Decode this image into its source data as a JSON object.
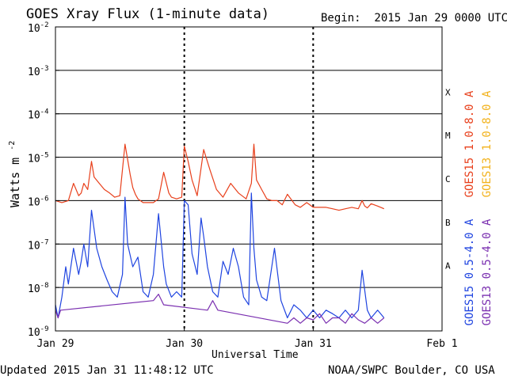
{
  "header": {
    "title": "GOES Xray Flux (1-minute data)",
    "begin": "Begin:  2015 Jan 29 0000 UTC"
  },
  "footer": {
    "updated": "Updated 2015 Jan 31 11:48:12 UTC",
    "credit": "NOAA/SWPC Boulder, CO USA"
  },
  "colors": {
    "goes15_long": "#e8401c",
    "goes13_long": "#f2b21c",
    "goes15_short": "#1f44e0",
    "goes13_short": "#7a2fb0"
  },
  "chart_data": {
    "type": "line",
    "title": "GOES Xray Flux (1-minute data)",
    "xlabel": "Universal Time",
    "ylabel": "Watts m",
    "ylabel_superscript": "-2",
    "y_scale": "log",
    "ylim": [
      1e-09,
      0.01
    ],
    "xlim": [
      "2015-01-29",
      "2015-02-01"
    ],
    "x_ticks": [
      "Jan 29",
      "Jan 30",
      "Jan 31",
      "Feb 1"
    ],
    "y_ticks": [
      {
        "value": 0.01,
        "base": "10",
        "exp": "-2"
      },
      {
        "value": 0.001,
        "base": "10",
        "exp": "-3"
      },
      {
        "value": 0.0001,
        "base": "10",
        "exp": "-4"
      },
      {
        "value": 1e-05,
        "base": "10",
        "exp": "-5"
      },
      {
        "value": 1e-06,
        "base": "10",
        "exp": "-6"
      },
      {
        "value": 1e-07,
        "base": "10",
        "exp": "-7"
      },
      {
        "value": 1e-08,
        "base": "10",
        "exp": "-8"
      },
      {
        "value": 1e-09,
        "base": "10",
        "exp": "-9"
      }
    ],
    "flare_classes": [
      {
        "label": "X",
        "value": 0.0001
      },
      {
        "label": "M",
        "value": 1e-05
      },
      {
        "label": "C",
        "value": 1e-06
      },
      {
        "label": "B",
        "value": 1e-07
      },
      {
        "label": "A",
        "value": 1e-08
      }
    ],
    "grid": true,
    "legend_position": "right, vertical",
    "series": [
      {
        "name": "GOES15 1.0-8.0 A",
        "color": "#e8401c",
        "x": [
          0,
          0.05,
          0.1,
          0.14,
          0.18,
          0.2,
          0.22,
          0.25,
          0.28,
          0.3,
          0.34,
          0.38,
          0.42,
          0.46,
          0.5,
          0.54,
          0.58,
          0.6,
          0.62,
          0.64,
          0.68,
          0.72,
          0.76,
          0.8,
          0.84,
          0.88,
          0.9,
          0.94,
          0.98,
          1.0,
          1.03,
          1.06,
          1.1,
          1.15,
          1.2,
          1.25,
          1.3,
          1.36,
          1.42,
          1.48,
          1.52,
          1.54,
          1.56,
          1.6,
          1.64,
          1.68,
          1.72,
          1.76,
          1.8,
          1.86,
          1.9,
          1.95,
          2.0,
          2.05,
          2.1,
          2.15,
          2.2,
          2.25,
          2.3,
          2.35,
          2.38,
          2.4,
          2.42,
          2.45,
          2.5,
          2.55
        ],
        "y": [
          1e-06,
          9e-07,
          1e-06,
          2.5e-06,
          1.3e-06,
          1.5e-06,
          2.5e-06,
          1.8e-06,
          8e-06,
          3.5e-06,
          2.5e-06,
          1.8e-06,
          1.5e-06,
          1.2e-06,
          1.3e-06,
          2e-05,
          4e-06,
          2e-06,
          1.4e-06,
          1.1e-06,
          9e-07,
          9e-07,
          9e-07,
          1.1e-06,
          4.5e-06,
          1.5e-06,
          1.2e-06,
          1.1e-06,
          1.2e-06,
          1.8e-05,
          8e-06,
          3e-06,
          1.3e-06,
          1.5e-05,
          5e-06,
          1.8e-06,
          1.2e-06,
          2.5e-06,
          1.5e-06,
          1.1e-06,
          2.5e-06,
          2e-05,
          3e-06,
          1.8e-06,
          1.1e-06,
          1e-06,
          1e-06,
          8e-07,
          1.4e-06,
          8e-07,
          7e-07,
          9e-07,
          7e-07,
          7e-07,
          7e-07,
          6.5e-07,
          6e-07,
          6.5e-07,
          7e-07,
          6.5e-07,
          1e-06,
          7.5e-07,
          6.8e-07,
          8.5e-07,
          7.5e-07,
          6.5e-07
        ]
      },
      {
        "name": "GOES13 1.0-8.0 A",
        "color": "#f2b21c",
        "x": [],
        "y": []
      },
      {
        "name": "GOES15 0.5-4.0 A",
        "color": "#1f44e0",
        "x": [
          0,
          0.02,
          0.05,
          0.08,
          0.1,
          0.14,
          0.18,
          0.2,
          0.22,
          0.25,
          0.28,
          0.32,
          0.36,
          0.4,
          0.44,
          0.48,
          0.52,
          0.54,
          0.56,
          0.6,
          0.64,
          0.68,
          0.72,
          0.76,
          0.8,
          0.84,
          0.86,
          0.9,
          0.94,
          0.98,
          1.0,
          1.03,
          1.06,
          1.1,
          1.13,
          1.15,
          1.18,
          1.22,
          1.26,
          1.3,
          1.34,
          1.38,
          1.42,
          1.46,
          1.5,
          1.52,
          1.54,
          1.56,
          1.6,
          1.64,
          1.7,
          1.75,
          1.8,
          1.85,
          1.9,
          1.95,
          2.0,
          2.05,
          2.1,
          2.15,
          2.2,
          2.25,
          2.3,
          2.35,
          2.38,
          2.42,
          2.45,
          2.5,
          2.55
        ],
        "y": [
          4e-09,
          2e-09,
          6e-09,
          3e-08,
          1.2e-08,
          8e-08,
          2e-08,
          4e-08,
          1e-07,
          3e-08,
          6e-07,
          8e-08,
          3e-08,
          1.5e-08,
          8e-09,
          6e-09,
          2e-08,
          1.2e-06,
          1e-07,
          3e-08,
          5e-08,
          8e-09,
          6e-09,
          2e-08,
          5e-07,
          3e-08,
          1.2e-08,
          6e-09,
          8e-09,
          6e-09,
          1e-06,
          8e-07,
          6e-08,
          2e-08,
          4e-07,
          1.5e-07,
          3e-08,
          8e-09,
          6e-09,
          4e-08,
          2e-08,
          8e-08,
          3e-08,
          6e-09,
          4e-09,
          1.5e-06,
          8e-08,
          1.5e-08,
          6e-09,
          5e-09,
          8e-08,
          5e-09,
          2e-09,
          4e-09,
          3e-09,
          2e-09,
          3e-09,
          2e-09,
          3e-09,
          2.5e-09,
          2e-09,
          3e-09,
          2e-09,
          3e-09,
          2.5e-08,
          3e-09,
          2e-09,
          3e-09,
          2e-09
        ]
      },
      {
        "name": "GOES13 0.5-4.0 A",
        "color": "#7a2fb0",
        "x": [
          0,
          0.02,
          0.04,
          0.76,
          0.8,
          0.84,
          1.18,
          1.22,
          1.26,
          1.8,
          1.85,
          1.9,
          1.95,
          2.0,
          2.05,
          2.1,
          2.15,
          2.2,
          2.25,
          2.3,
          2.35,
          2.4,
          2.45,
          2.5,
          2.55
        ],
        "y": [
          3e-09,
          2e-09,
          3e-09,
          5e-09,
          7e-09,
          4e-09,
          3e-09,
          5e-09,
          3e-09,
          1.5e-09,
          2e-09,
          1.5e-09,
          2e-09,
          1.8e-09,
          2.5e-09,
          1.5e-09,
          2e-09,
          2e-09,
          1.5e-09,
          2.5e-09,
          1.8e-09,
          1.5e-09,
          2e-09,
          1.5e-09,
          2e-09
        ]
      }
    ]
  }
}
